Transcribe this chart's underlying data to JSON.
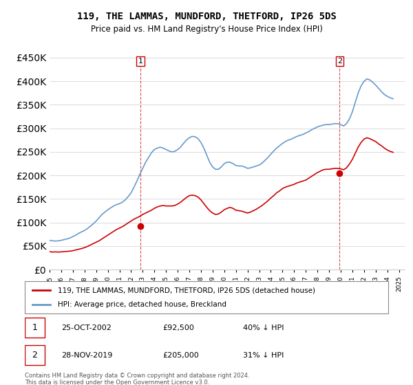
{
  "title": "119, THE LAMMAS, MUNDFORD, THETFORD, IP26 5DS",
  "subtitle": "Price paid vs. HM Land Registry's House Price Index (HPI)",
  "legend_label_red": "119, THE LAMMAS, MUNDFORD, THETFORD, IP26 5DS (detached house)",
  "legend_label_blue": "HPI: Average price, detached house, Breckland",
  "footer": "Contains HM Land Registry data © Crown copyright and database right 2024.\nThis data is licensed under the Open Government Licence v3.0.",
  "point1_label": "25-OCT-2002",
  "point1_price": "£92,500",
  "point1_pct": "40% ↓ HPI",
  "point1_value": 92500,
  "point1_year": 2002.81,
  "point2_label": "28-NOV-2019",
  "point2_price": "£205,000",
  "point2_pct": "31% ↓ HPI",
  "point2_value": 205000,
  "point2_year": 2019.91,
  "red_color": "#cc0000",
  "blue_color": "#6699cc",
  "ylim": [
    0,
    450000
  ],
  "xlim_start": 1995.0,
  "xlim_end": 2025.5,
  "hpi_data": {
    "years": [
      1995.0,
      1995.25,
      1995.5,
      1995.75,
      1996.0,
      1996.25,
      1996.5,
      1996.75,
      1997.0,
      1997.25,
      1997.5,
      1997.75,
      1998.0,
      1998.25,
      1998.5,
      1998.75,
      1999.0,
      1999.25,
      1999.5,
      1999.75,
      2000.0,
      2000.25,
      2000.5,
      2000.75,
      2001.0,
      2001.25,
      2001.5,
      2001.75,
      2002.0,
      2002.25,
      2002.5,
      2002.75,
      2003.0,
      2003.25,
      2003.5,
      2003.75,
      2004.0,
      2004.25,
      2004.5,
      2004.75,
      2005.0,
      2005.25,
      2005.5,
      2005.75,
      2006.0,
      2006.25,
      2006.5,
      2006.75,
      2007.0,
      2007.25,
      2007.5,
      2007.75,
      2008.0,
      2008.25,
      2008.5,
      2008.75,
      2009.0,
      2009.25,
      2009.5,
      2009.75,
      2010.0,
      2010.25,
      2010.5,
      2010.75,
      2011.0,
      2011.25,
      2011.5,
      2011.75,
      2012.0,
      2012.25,
      2012.5,
      2012.75,
      2013.0,
      2013.25,
      2013.5,
      2013.75,
      2014.0,
      2014.25,
      2014.5,
      2014.75,
      2015.0,
      2015.25,
      2015.5,
      2015.75,
      2016.0,
      2016.25,
      2016.5,
      2016.75,
      2017.0,
      2017.25,
      2017.5,
      2017.75,
      2018.0,
      2018.25,
      2018.5,
      2018.75,
      2019.0,
      2019.25,
      2019.5,
      2019.75,
      2020.0,
      2020.25,
      2020.5,
      2020.75,
      2021.0,
      2021.25,
      2021.5,
      2021.75,
      2022.0,
      2022.25,
      2022.5,
      2022.75,
      2023.0,
      2023.25,
      2023.5,
      2023.75,
      2024.0,
      2024.25,
      2024.5
    ],
    "values": [
      62000,
      61000,
      60500,
      61000,
      62000,
      63500,
      65000,
      67000,
      70000,
      73000,
      77000,
      80000,
      83000,
      87000,
      92000,
      97000,
      103000,
      110000,
      117000,
      122000,
      127000,
      131000,
      135000,
      138000,
      140000,
      143000,
      148000,
      155000,
      163000,
      175000,
      188000,
      202000,
      215000,
      228000,
      238000,
      248000,
      255000,
      258000,
      260000,
      258000,
      255000,
      252000,
      250000,
      251000,
      255000,
      260000,
      268000,
      275000,
      280000,
      283000,
      282000,
      278000,
      270000,
      258000,
      243000,
      228000,
      218000,
      213000,
      213000,
      218000,
      225000,
      228000,
      228000,
      225000,
      221000,
      220000,
      220000,
      218000,
      215000,
      216000,
      218000,
      220000,
      222000,
      226000,
      232000,
      238000,
      245000,
      252000,
      258000,
      263000,
      268000,
      272000,
      275000,
      277000,
      280000,
      283000,
      285000,
      287000,
      290000,
      293000,
      297000,
      300000,
      303000,
      305000,
      307000,
      308000,
      308000,
      309000,
      310000,
      310000,
      308000,
      305000,
      310000,
      320000,
      335000,
      355000,
      375000,
      390000,
      400000,
      405000,
      403000,
      398000,
      392000,
      385000,
      378000,
      372000,
      368000,
      365000,
      363000
    ]
  },
  "red_data": {
    "years": [
      1995.0,
      1995.25,
      1995.5,
      1995.75,
      1996.0,
      1996.25,
      1996.5,
      1996.75,
      1997.0,
      1997.25,
      1997.5,
      1997.75,
      1998.0,
      1998.25,
      1998.5,
      1998.75,
      1999.0,
      1999.25,
      1999.5,
      1999.75,
      2000.0,
      2000.25,
      2000.5,
      2000.75,
      2001.0,
      2001.25,
      2001.5,
      2001.75,
      2002.0,
      2002.25,
      2002.5,
      2002.75,
      2003.0,
      2003.25,
      2003.5,
      2003.75,
      2004.0,
      2004.25,
      2004.5,
      2004.75,
      2005.0,
      2005.25,
      2005.5,
      2005.75,
      2006.0,
      2006.25,
      2006.5,
      2006.75,
      2007.0,
      2007.25,
      2007.5,
      2007.75,
      2008.0,
      2008.25,
      2008.5,
      2008.75,
      2009.0,
      2009.25,
      2009.5,
      2009.75,
      2010.0,
      2010.25,
      2010.5,
      2010.75,
      2011.0,
      2011.25,
      2011.5,
      2011.75,
      2012.0,
      2012.25,
      2012.5,
      2012.75,
      2013.0,
      2013.25,
      2013.5,
      2013.75,
      2014.0,
      2014.25,
      2014.5,
      2014.75,
      2015.0,
      2015.25,
      2015.5,
      2015.75,
      2016.0,
      2016.25,
      2016.5,
      2016.75,
      2017.0,
      2017.25,
      2017.5,
      2017.75,
      2018.0,
      2018.25,
      2018.5,
      2018.75,
      2019.0,
      2019.25,
      2019.5,
      2019.75,
      2020.0,
      2020.25,
      2020.5,
      2020.75,
      2021.0,
      2021.25,
      2021.5,
      2021.75,
      2022.0,
      2022.25,
      2022.5,
      2022.75,
      2023.0,
      2023.25,
      2023.5,
      2023.75,
      2024.0,
      2024.25,
      2024.5
    ],
    "values": [
      38000,
      37000,
      37500,
      37000,
      37500,
      38000,
      38500,
      39000,
      40000,
      41500,
      43000,
      44500,
      46500,
      49000,
      52000,
      55000,
      58000,
      61000,
      65000,
      69000,
      73000,
      77000,
      81000,
      85000,
      88000,
      91000,
      95000,
      99000,
      103000,
      107000,
      110000,
      113000,
      117000,
      120000,
      123000,
      126000,
      130000,
      133000,
      135000,
      136000,
      135000,
      135000,
      135000,
      136000,
      139000,
      143000,
      148000,
      153000,
      157000,
      158000,
      157000,
      154000,
      148000,
      140000,
      132000,
      125000,
      120000,
      117000,
      118000,
      122000,
      127000,
      130000,
      132000,
      130000,
      126000,
      125000,
      124000,
      122000,
      120000,
      122000,
      125000,
      128000,
      132000,
      136000,
      141000,
      146000,
      152000,
      157000,
      163000,
      167000,
      172000,
      175000,
      177000,
      179000,
      181000,
      184000,
      186000,
      188000,
      190000,
      194000,
      198000,
      202000,
      206000,
      209000,
      212000,
      213000,
      213000,
      214000,
      215000,
      215000,
      214000,
      212000,
      216000,
      224000,
      234000,
      247000,
      260000,
      270000,
      277000,
      280000,
      278000,
      275000,
      272000,
      267000,
      263000,
      258000,
      254000,
      251000,
      249000
    ]
  }
}
